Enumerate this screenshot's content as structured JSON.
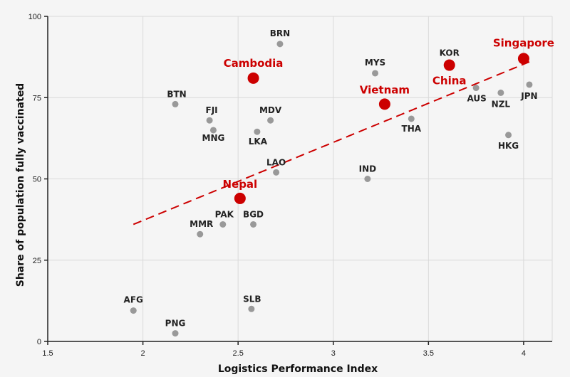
{
  "chart_data": {
    "type": "scatter",
    "xlabel": "Logistics Performance Index",
    "ylabel": "Share of population fully vaccinated",
    "xlim": [
      1.5,
      4.15
    ],
    "ylim": [
      0,
      100
    ],
    "xticks": [
      {
        "value": 1.5,
        "label": "1.5"
      },
      {
        "value": 2,
        "label": "2"
      },
      {
        "value": 2.5,
        "label": "2.5"
      },
      {
        "value": 3,
        "label": "3"
      },
      {
        "value": 3.5,
        "label": "3.5"
      },
      {
        "value": 4,
        "label": "4"
      }
    ],
    "yticks": [
      {
        "value": 0,
        "label": "0"
      },
      {
        "value": 25,
        "label": "25"
      },
      {
        "value": 50,
        "label": "50"
      },
      {
        "value": 75,
        "label": "75"
      },
      {
        "value": 100,
        "label": "100"
      }
    ],
    "grid": true,
    "colors": {
      "point": "#999999",
      "highlight": "#cc0000",
      "trend": "#cc0000",
      "background": "#f5f5f5"
    },
    "points": [
      {
        "label": "BRN",
        "x": 2.72,
        "y": 91.5,
        "highlight": false
      },
      {
        "label": "Cambodia",
        "x": 2.58,
        "y": 81.0,
        "highlight": true
      },
      {
        "label": "MYS",
        "x": 3.22,
        "y": 82.5,
        "highlight": false
      },
      {
        "label": "KOR",
        "x": 3.61,
        "y": 85.5,
        "highlight": false
      },
      {
        "label": "China",
        "x": 3.61,
        "y": 85.0,
        "highlight": true
      },
      {
        "label": "Singapore",
        "x": 4.0,
        "y": 87.0,
        "highlight": true
      },
      {
        "label": "BTN",
        "x": 2.17,
        "y": 73.0,
        "highlight": false
      },
      {
        "label": "FJI",
        "x": 2.35,
        "y": 68.0,
        "highlight": false
      },
      {
        "label": "MNG",
        "x": 2.37,
        "y": 65.0,
        "highlight": false
      },
      {
        "label": "MDV",
        "x": 2.67,
        "y": 68.0,
        "highlight": false
      },
      {
        "label": "LKA",
        "x": 2.6,
        "y": 64.5,
        "highlight": false
      },
      {
        "label": "Vietnam",
        "x": 3.27,
        "y": 73.0,
        "highlight": true
      },
      {
        "label": "THA",
        "x": 3.41,
        "y": 68.5,
        "highlight": false
      },
      {
        "label": "AUS",
        "x": 3.75,
        "y": 78.0,
        "highlight": false
      },
      {
        "label": "NZL",
        "x": 3.88,
        "y": 76.5,
        "highlight": false
      },
      {
        "label": "JPN",
        "x": 4.03,
        "y": 79.0,
        "highlight": false
      },
      {
        "label": "HKG",
        "x": 3.92,
        "y": 63.5,
        "highlight": false
      },
      {
        "label": "LAO",
        "x": 2.7,
        "y": 52.0,
        "highlight": false
      },
      {
        "label": "IND",
        "x": 3.18,
        "y": 50.0,
        "highlight": false
      },
      {
        "label": "Nepal",
        "x": 2.51,
        "y": 44.0,
        "highlight": true
      },
      {
        "label": "PAK",
        "x": 2.42,
        "y": 36.0,
        "highlight": false
      },
      {
        "label": "BGD",
        "x": 2.58,
        "y": 36.0,
        "highlight": false
      },
      {
        "label": "MMR",
        "x": 2.3,
        "y": 33.0,
        "highlight": false
      },
      {
        "label": "AFG",
        "x": 1.95,
        "y": 9.5,
        "highlight": false
      },
      {
        "label": "SLB",
        "x": 2.57,
        "y": 10.0,
        "highlight": false
      },
      {
        "label": "PNG",
        "x": 2.17,
        "y": 2.5,
        "highlight": false
      }
    ],
    "trendline": {
      "x": [
        1.95,
        4.03
      ],
      "y": [
        36.0,
        86.0
      ]
    }
  }
}
